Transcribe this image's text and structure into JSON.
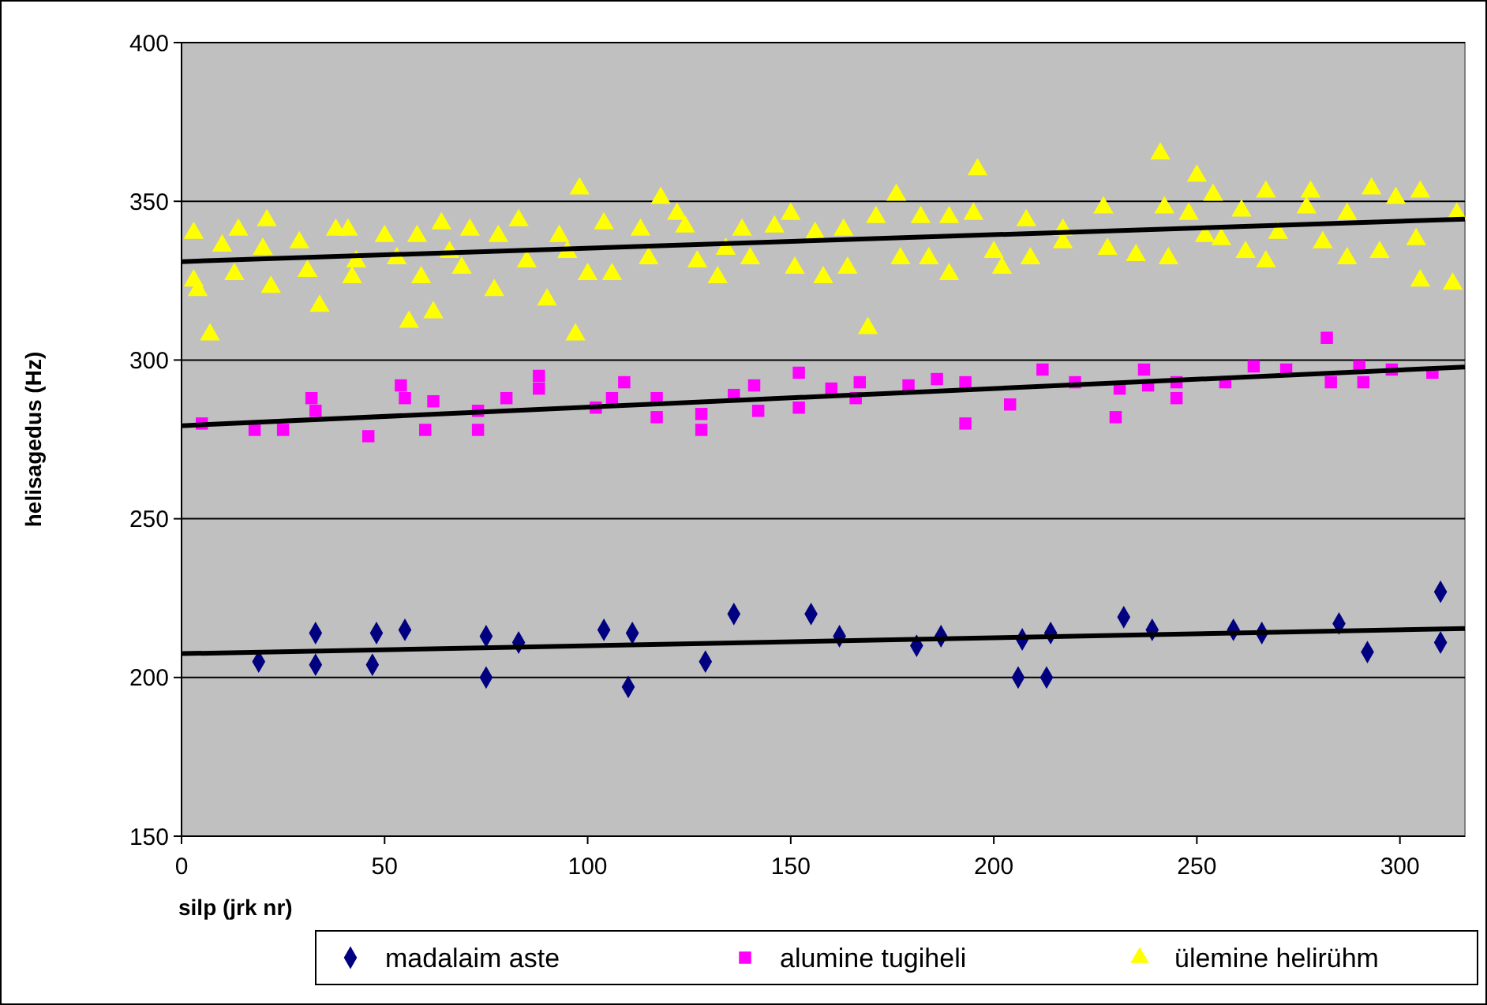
{
  "chart_data": {
    "type": "scatter",
    "xlabel": "silp (jrk nr)",
    "ylabel": "helisagedus (Hz)",
    "xlim": [
      0,
      316
    ],
    "ylim": [
      150,
      400
    ],
    "xticks": [
      0,
      50,
      100,
      150,
      200,
      250,
      300
    ],
    "yticks": [
      150,
      200,
      250,
      300,
      350,
      400
    ],
    "grid": "y",
    "legend": "bottom",
    "series": [
      {
        "name": "madalaim aste",
        "color": "#000080",
        "marker": "diamond",
        "x": [
          19,
          33,
          33,
          47,
          48,
          55,
          75,
          75,
          83,
          104,
          111,
          110,
          129,
          136,
          155,
          162,
          181,
          187,
          207,
          206,
          214,
          213,
          232,
          239,
          259,
          266,
          285,
          292,
          310,
          310
        ],
        "values": [
          205,
          214,
          204,
          204,
          214,
          215,
          213,
          200,
          211,
          215,
          214,
          197,
          205,
          220,
          220,
          213,
          210,
          213,
          212,
          200,
          214,
          200,
          219,
          215,
          215,
          214,
          217,
          208,
          227,
          211
        ]
      },
      {
        "name": "alumine tugiheli",
        "color": "#ff00ff",
        "marker": "square",
        "x": [
          5,
          18,
          25,
          32,
          33,
          46,
          54,
          55,
          62,
          60,
          73,
          73,
          80,
          88,
          88,
          102,
          106,
          109,
          117,
          117,
          128,
          128,
          136,
          141,
          142,
          152,
          152,
          160,
          166,
          167,
          179,
          186,
          193,
          193,
          204,
          212,
          220,
          231,
          230,
          237,
          238,
          245,
          245,
          257,
          264,
          272,
          282,
          283,
          290,
          291,
          298,
          308
        ],
        "values": [
          280,
          278,
          278,
          288,
          284,
          276,
          292,
          288,
          287,
          278,
          284,
          278,
          288,
          295,
          291,
          285,
          288,
          293,
          288,
          282,
          283,
          278,
          289,
          292,
          284,
          296,
          285,
          291,
          288,
          293,
          292,
          294,
          293,
          280,
          286,
          297,
          293,
          291,
          282,
          297,
          292,
          293,
          288,
          293,
          298,
          297,
          307,
          293,
          298,
          293,
          297,
          296
        ]
      },
      {
        "name": "ülemine helirühm",
        "color": "#ffff00",
        "marker": "triangle",
        "x": [
          3,
          3,
          4,
          7,
          10,
          13,
          14,
          21,
          22,
          20,
          29,
          31,
          34,
          38,
          41,
          43,
          42,
          50,
          53,
          56,
          58,
          59,
          62,
          64,
          66,
          71,
          69,
          77,
          78,
          83,
          85,
          90,
          93,
          97,
          98,
          95,
          100,
          104,
          106,
          113,
          115,
          118,
          122,
          124,
          127,
          132,
          134,
          138,
          140,
          146,
          150,
          151,
          156,
          158,
          164,
          163,
          169,
          171,
          176,
          177,
          182,
          184,
          189,
          189,
          195,
          196,
          200,
          202,
          208,
          209,
          217,
          217,
          227,
          228,
          235,
          241,
          242,
          243,
          248,
          250,
          252,
          254,
          256,
          261,
          262,
          267,
          267,
          270,
          278,
          277,
          281,
          287,
          287,
          293,
          295,
          299,
          305,
          304,
          305,
          313,
          314
        ],
        "values": [
          340,
          325,
          322,
          308,
          336,
          327,
          341,
          344,
          323,
          335,
          337,
          328,
          317,
          341,
          341,
          331,
          326,
          339,
          332,
          312,
          339,
          326,
          315,
          343,
          334,
          341,
          329,
          322,
          339,
          344,
          331,
          319,
          339,
          308,
          354,
          334,
          327,
          343,
          327,
          341,
          332,
          351,
          346,
          342,
          331,
          326,
          335,
          341,
          332,
          342,
          346,
          329,
          340,
          326,
          329,
          341,
          310,
          345,
          352,
          332,
          345,
          332,
          327,
          345,
          346,
          360,
          334,
          329,
          344,
          332,
          341,
          337,
          348,
          335,
          333,
          365,
          348,
          332,
          346,
          358,
          339,
          352,
          338,
          347,
          334,
          353,
          331,
          340,
          353,
          348,
          337,
          332,
          346,
          354,
          334,
          351,
          353,
          338,
          325,
          324,
          346
        ]
      },
      {
        "type": "line",
        "color": "#000000",
        "x": [
          0,
          316
        ],
        "values": [
          207.5,
          215.4
        ]
      },
      {
        "type": "line",
        "color": "#000000",
        "x": [
          0,
          316
        ],
        "values": [
          279.3,
          297.8
        ]
      },
      {
        "type": "line",
        "color": "#000000",
        "x": [
          0,
          316
        ],
        "values": [
          331,
          344.4
        ]
      }
    ]
  }
}
